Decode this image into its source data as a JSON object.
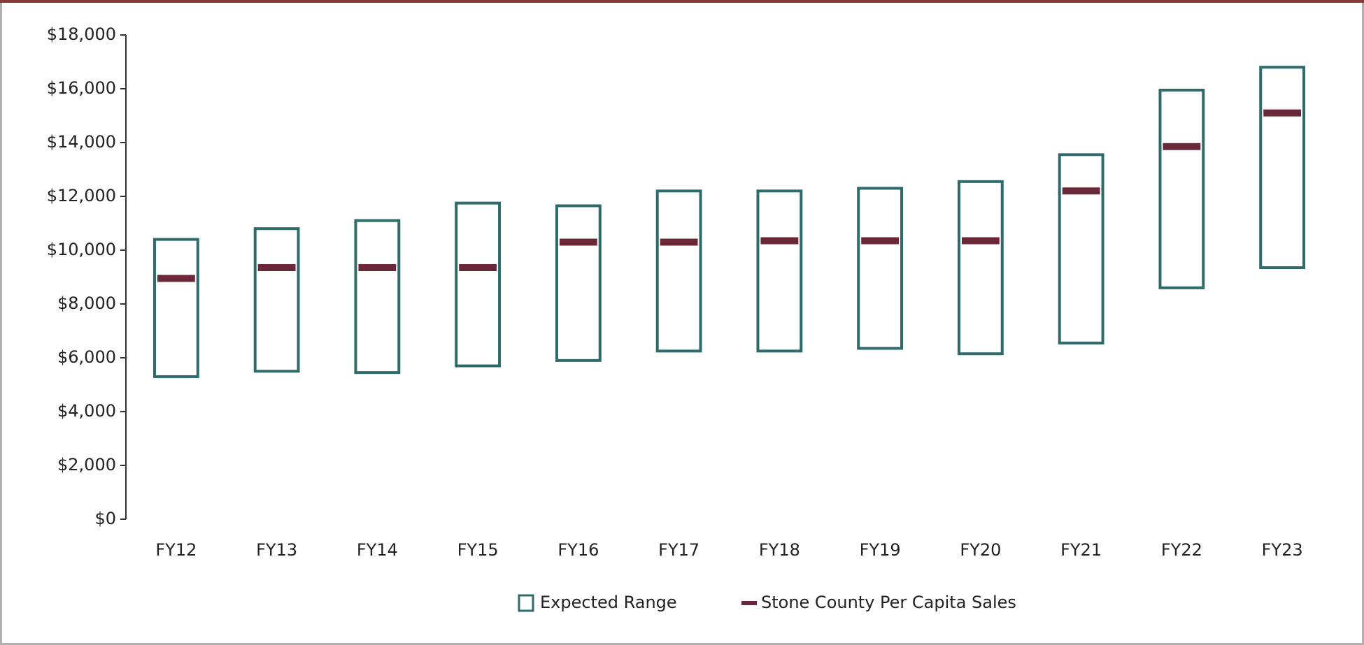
{
  "chart_data": {
    "type": "range_bar",
    "categories": [
      "FY12",
      "FY13",
      "FY14",
      "FY15",
      "FY16",
      "FY17",
      "FY18",
      "FY19",
      "FY20",
      "FY21",
      "FY22",
      "FY23"
    ],
    "series": [
      {
        "name": "Expected Range",
        "color": "#2f6b6b",
        "low": [
          5300,
          5500,
          5450,
          5700,
          5900,
          6250,
          6250,
          6350,
          6150,
          6550,
          8600,
          9350
        ],
        "high": [
          10400,
          10800,
          11100,
          11750,
          11650,
          12200,
          12200,
          12300,
          12550,
          13550,
          15950,
          16800
        ]
      },
      {
        "name": "Stone County Per Capita Sales",
        "color": "#6b2838",
        "values": [
          8950,
          9350,
          9350,
          9350,
          10300,
          10300,
          10350,
          10350,
          10350,
          12200,
          13850,
          15100
        ]
      }
    ],
    "ylim": [
      0,
      18000
    ],
    "yticks": [
      {
        "value": 0,
        "label": "$0"
      },
      {
        "value": 2000,
        "label": "$2,000"
      },
      {
        "value": 4000,
        "label": "$4,000"
      },
      {
        "value": 6000,
        "label": "$6,000"
      },
      {
        "value": 8000,
        "label": "$8,000"
      },
      {
        "value": 10000,
        "label": "$10,000"
      },
      {
        "value": 12000,
        "label": "$12,000"
      },
      {
        "value": 14000,
        "label": "$14,000"
      },
      {
        "value": 16000,
        "label": "$16,000"
      },
      {
        "value": 18000,
        "label": "$18,000"
      }
    ],
    "grid": false,
    "legend": "bottom"
  }
}
